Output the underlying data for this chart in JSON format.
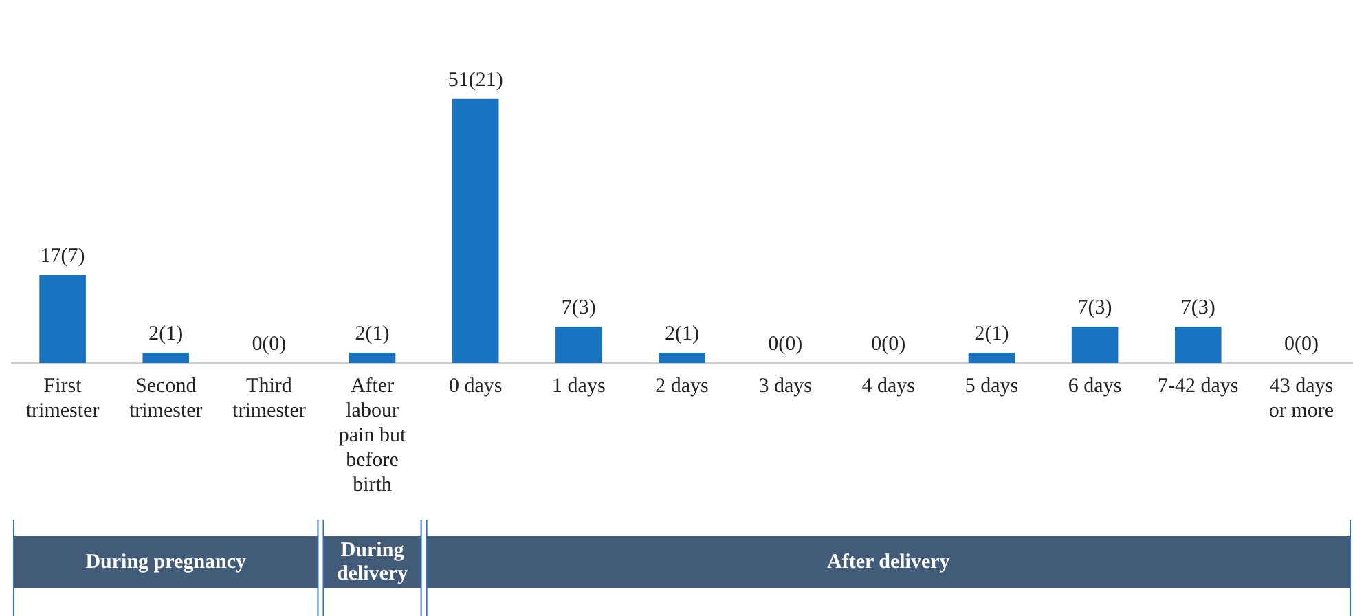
{
  "chart_data": {
    "type": "bar",
    "categories": [
      "First trimester",
      "Second trimester",
      "Third trimester",
      "After labour pain but before birth",
      "0 days",
      "1 days",
      "2 days",
      "3 days",
      "4 days",
      "5 days",
      "6 days",
      "7-42 days",
      "43 days or more"
    ],
    "values": [
      17,
      2,
      0,
      2,
      51,
      7,
      2,
      0,
      0,
      2,
      7,
      7,
      0
    ],
    "value_labels": [
      "17(7)",
      "2(1)",
      "0(0)",
      "2(1)",
      "51(21)",
      "7(3)",
      "2(1)",
      "0(0)",
      "0(0)",
      "2(1)",
      "7(3)",
      "7(3)",
      "0(0)"
    ],
    "color": "#1874c0",
    "annotations": [
      "During pregnancy",
      "During delivery",
      "After delivery"
    ]
  }
}
